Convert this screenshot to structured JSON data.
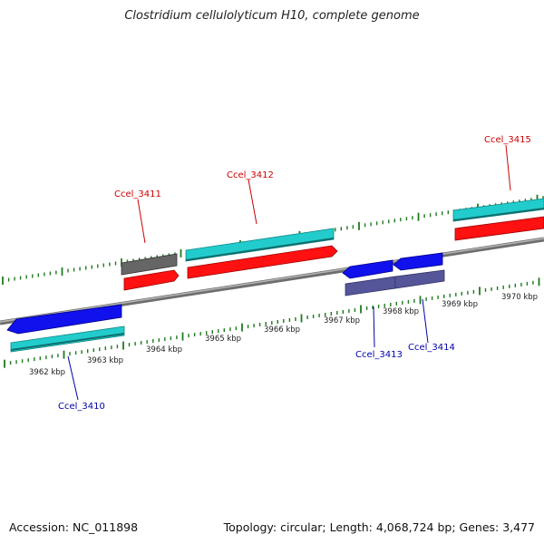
{
  "title": "Clostridium cellulolyticum H10, complete genome",
  "footer": {
    "accession": "Accession: NC_011898",
    "summary": "Topology: circular; Length: 4,068,724 bp; Genes: 3,477"
  },
  "colors": {
    "backbone": "#8a8a8a",
    "tick": "#1f7a1f",
    "label_forward": "#cc0000",
    "label_reverse": "#0000aa",
    "forward_gene": "#666666",
    "forward_cds": "#ff1111",
    "rna": "#22cccc",
    "reverse_gene": "#1111ee",
    "reverse_cds": "#555599"
  },
  "scale_labels": [
    "3962 kbp",
    "3963 kbp",
    "3964 kbp",
    "3965 kbp",
    "3966 kbp",
    "3967 kbp",
    "3968 kbp",
    "3969 kbp",
    "3970 kbp"
  ],
  "genes": [
    {
      "id": "Ccel_3410",
      "strand": "reverse"
    },
    {
      "id": "Ccel_3411",
      "strand": "forward"
    },
    {
      "id": "Ccel_3412",
      "strand": "forward"
    },
    {
      "id": "Ccel_3413",
      "strand": "reverse"
    },
    {
      "id": "Ccel_3414",
      "strand": "reverse"
    },
    {
      "id": "Ccel_3415",
      "strand": "forward"
    }
  ]
}
